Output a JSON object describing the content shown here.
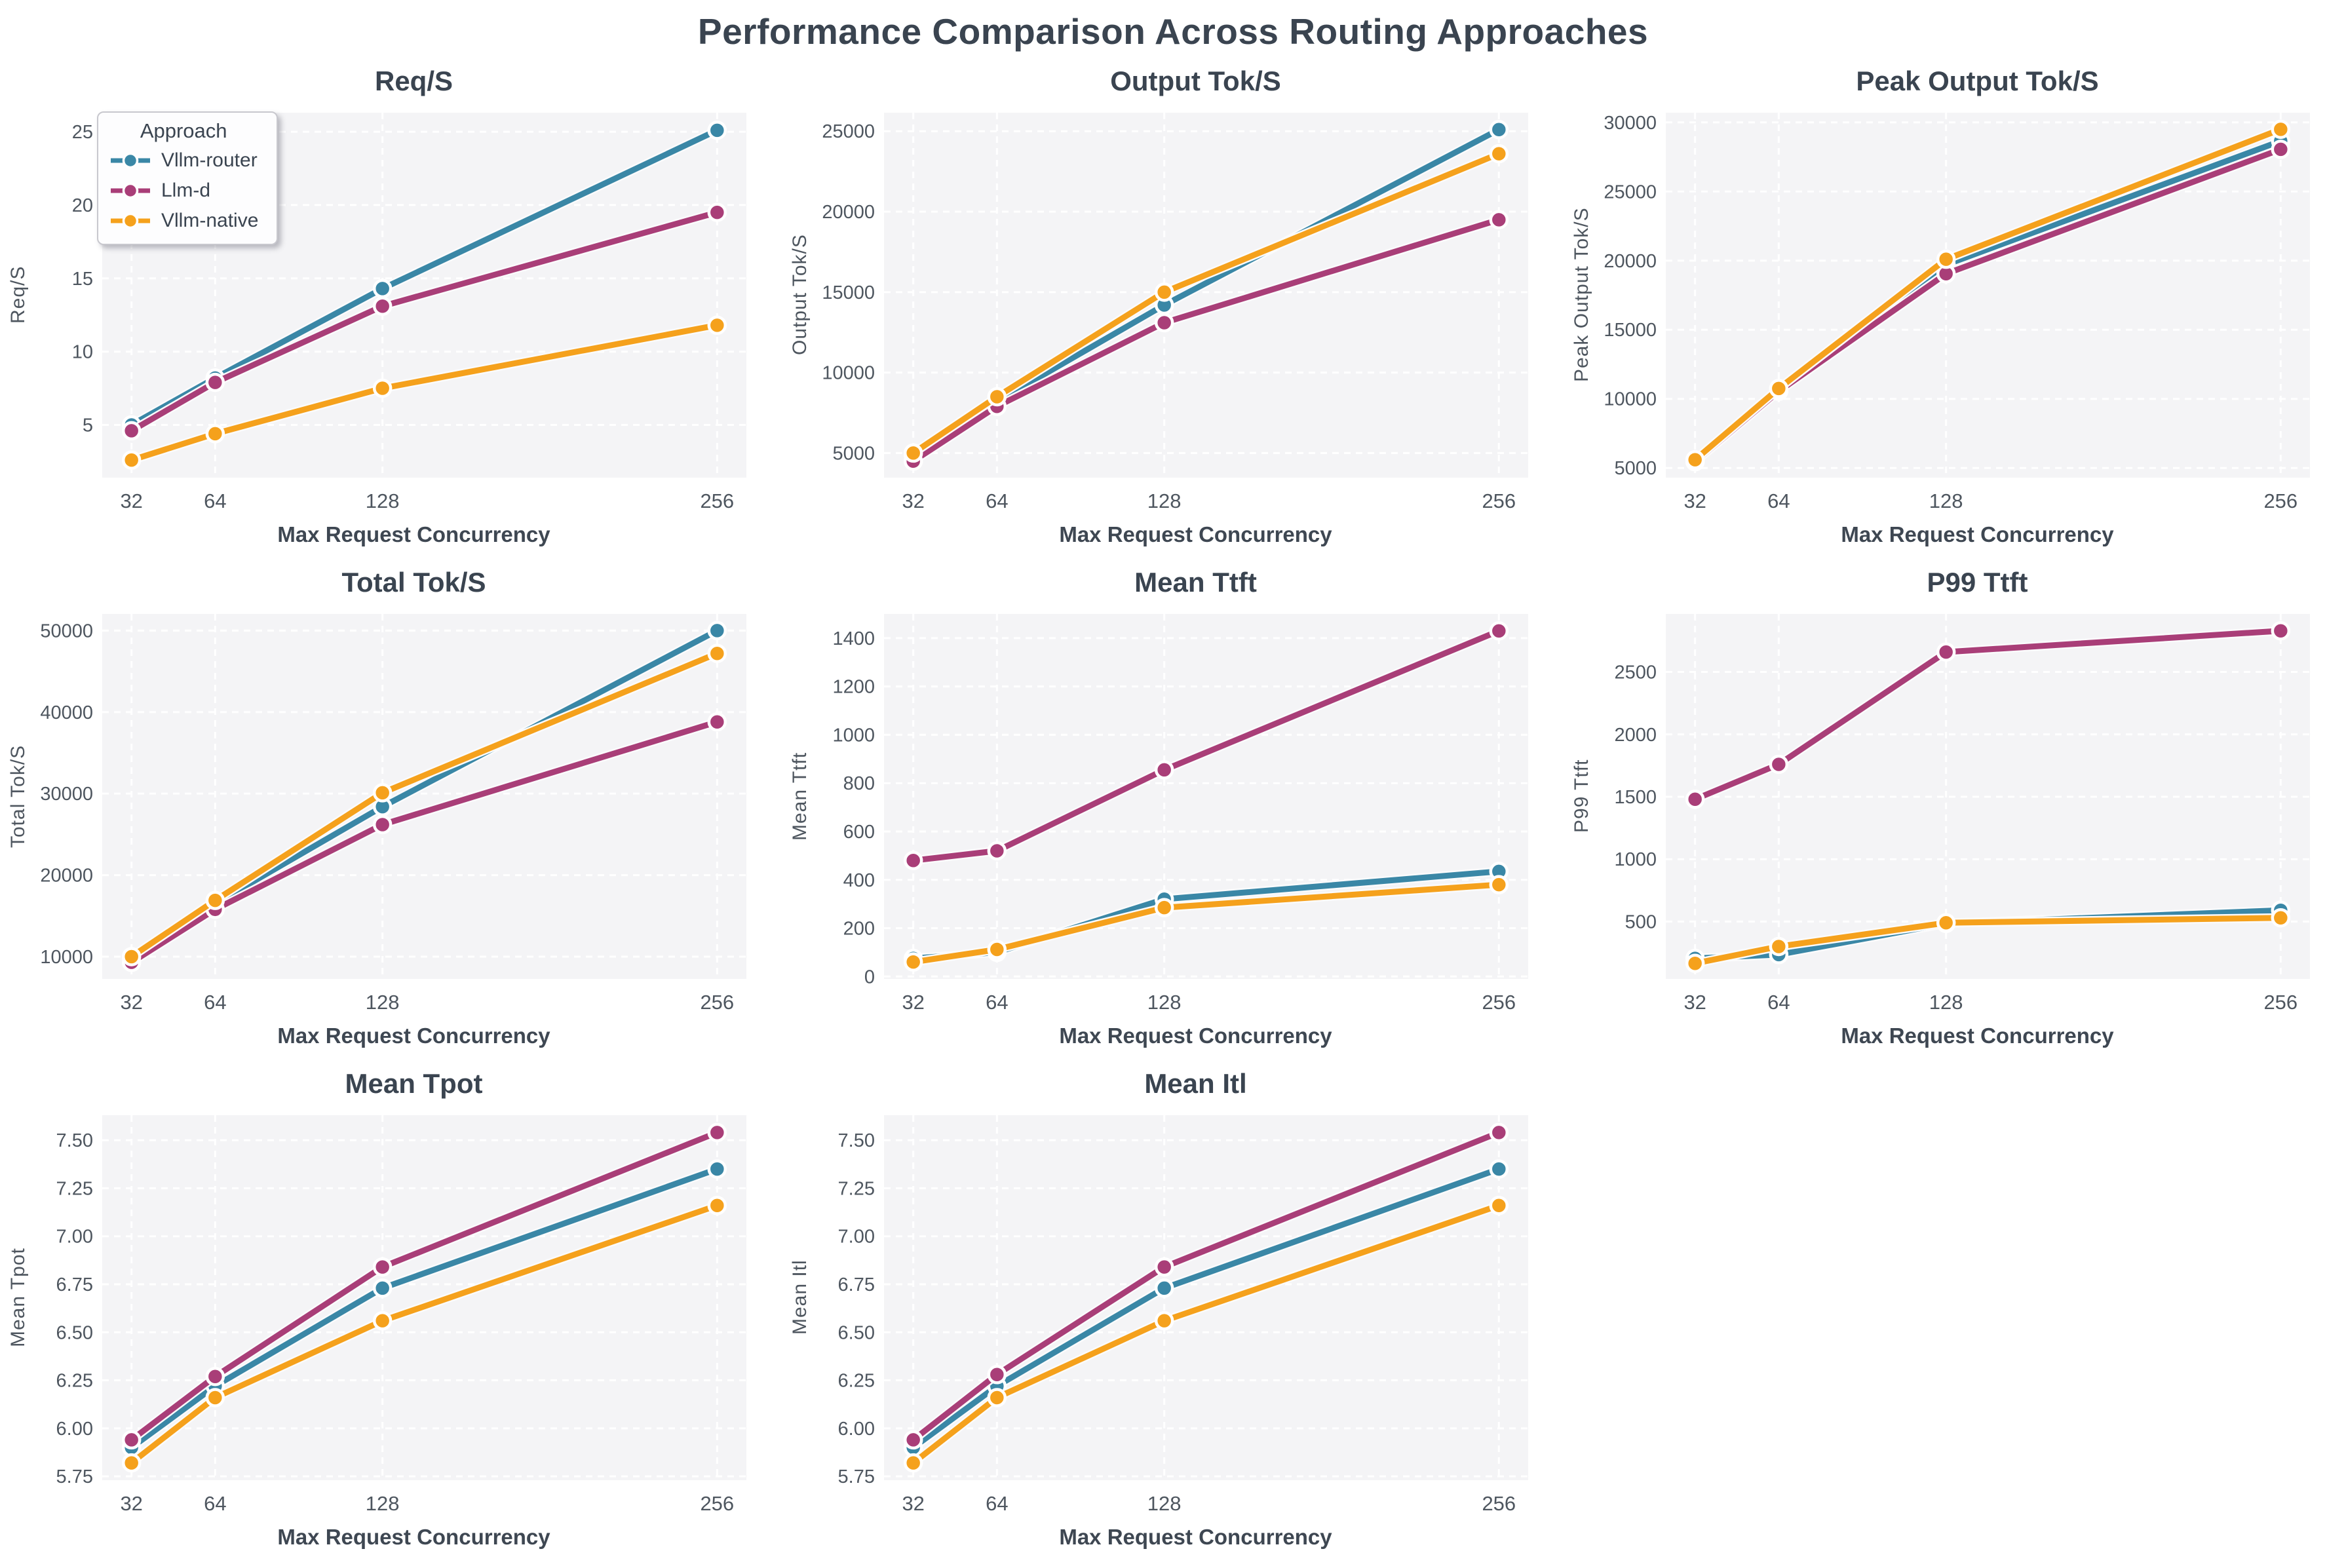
{
  "page": {
    "title": "Performance Comparison Across Routing Approaches"
  },
  "xlabel": "Max Request Concurrency",
  "legend": {
    "title": "Approach",
    "entries": [
      {
        "label": "Vllm-router",
        "color": "#3a87a6"
      },
      {
        "label": "Llm-d",
        "color": "#a93e78"
      },
      {
        "label": "Vllm-native",
        "color": "#f5a11c"
      }
    ]
  },
  "style": {
    "plot_bg": "#f4f4f6",
    "grid_color": "#ffffff",
    "tick_color": "#4e565f",
    "title_color": "#3a4450",
    "accent_blue": "#3a87a6",
    "accent_magenta": "#a93e78",
    "accent_orange": "#f5a11c"
  },
  "chart_data": [
    {
      "type": "line",
      "title": "Req/S",
      "ylabel": "Req/S",
      "x": [
        32,
        64,
        128,
        256
      ],
      "xtick_labels": [
        "32",
        "64",
        "128",
        "256"
      ],
      "ytick_labels": [
        "5",
        "10",
        "15",
        "20",
        "25"
      ],
      "ylim": [
        1.4,
        26.3
      ],
      "grid": true,
      "legend_visible": true,
      "series": [
        {
          "name": "Vllm-router",
          "color": "#3a87a6",
          "values": [
            5.0,
            8.2,
            14.3,
            25.1
          ]
        },
        {
          "name": "Llm-d",
          "color": "#a93e78",
          "values": [
            4.6,
            7.9,
            13.1,
            19.5
          ]
        },
        {
          "name": "Vllm-native",
          "color": "#f5a11c",
          "values": [
            2.6,
            4.4,
            7.5,
            11.8
          ]
        }
      ]
    },
    {
      "type": "line",
      "title": "Output Tok/S",
      "ylabel": "Output Tok/S",
      "x": [
        32,
        64,
        128,
        256
      ],
      "xtick_labels": [
        "32",
        "64",
        "128",
        "256"
      ],
      "ytick_labels": [
        "5000",
        "10000",
        "15000",
        "20000",
        "25000"
      ],
      "ylim": [
        3470,
        26150
      ],
      "grid": true,
      "legend_visible": false,
      "series": [
        {
          "name": "Vllm-router",
          "color": "#3a87a6",
          "values": [
            4900,
            8200,
            14200,
            25100
          ]
        },
        {
          "name": "Llm-d",
          "color": "#a93e78",
          "values": [
            4500,
            7900,
            13100,
            19500
          ]
        },
        {
          "name": "Vllm-native",
          "color": "#f5a11c",
          "values": [
            5000,
            8500,
            15000,
            23600
          ]
        }
      ]
    },
    {
      "type": "line",
      "title": "Peak Output Tok/S",
      "ylabel": "Peak Output Tok/S",
      "x": [
        32,
        64,
        128,
        256
      ],
      "xtick_labels": [
        "32",
        "64",
        "128",
        "256"
      ],
      "ytick_labels": [
        "5000",
        "10000",
        "15000",
        "20000",
        "25000",
        "30000"
      ],
      "ylim": [
        4300,
        30700
      ],
      "grid": true,
      "legend_visible": false,
      "series": [
        {
          "name": "Vllm-router",
          "color": "#3a87a6",
          "values": [
            5500,
            10600,
            19700,
            28650
          ]
        },
        {
          "name": "Llm-d",
          "color": "#a93e78",
          "values": [
            5450,
            10550,
            19050,
            28050
          ]
        },
        {
          "name": "Vllm-native",
          "color": "#f5a11c",
          "values": [
            5600,
            10750,
            20100,
            29500
          ]
        }
      ]
    },
    {
      "type": "line",
      "title": "Total Tok/S",
      "ylabel": "Total Tok/S",
      "x": [
        32,
        64,
        128,
        256
      ],
      "xtick_labels": [
        "32",
        "64",
        "128",
        "256"
      ],
      "ytick_labels": [
        "10000",
        "20000",
        "30000",
        "40000",
        "50000"
      ],
      "ylim": [
        7265,
        52040
      ],
      "grid": true,
      "legend_visible": false,
      "series": [
        {
          "name": "Vllm-router",
          "color": "#3a87a6",
          "values": [
            9900,
            16500,
            28400,
            50000
          ]
        },
        {
          "name": "Llm-d",
          "color": "#a93e78",
          "values": [
            9300,
            15800,
            26200,
            38800
          ]
        },
        {
          "name": "Vllm-native",
          "color": "#f5a11c",
          "values": [
            10000,
            16900,
            30100,
            47200
          ]
        }
      ]
    },
    {
      "type": "line",
      "title": "Mean Ttft",
      "ylabel": "Mean Ttft",
      "x": [
        32,
        64,
        128,
        256
      ],
      "xtick_labels": [
        "32",
        "64",
        "128",
        "256"
      ],
      "ytick_labels": [
        "0",
        "200",
        "400",
        "600",
        "800",
        "1000",
        "1200",
        "1400"
      ],
      "ylim": [
        -10,
        1500
      ],
      "grid": true,
      "legend_visible": false,
      "series": [
        {
          "name": "Vllm-router",
          "color": "#3a87a6",
          "values": [
            75,
            100,
            320,
            435
          ]
        },
        {
          "name": "Llm-d",
          "color": "#a93e78",
          "values": [
            480,
            520,
            855,
            1430
          ]
        },
        {
          "name": "Vllm-native",
          "color": "#f5a11c",
          "values": [
            60,
            112,
            285,
            380
          ]
        }
      ]
    },
    {
      "type": "line",
      "title": "P99 Ttft",
      "ylabel": "P99 Ttft",
      "x": [
        32,
        64,
        128,
        256
      ],
      "xtick_labels": [
        "32",
        "64",
        "128",
        "256"
      ],
      "ytick_labels": [
        "500",
        "1000",
        "1500",
        "2000",
        "2500"
      ],
      "ylim": [
        40,
        2965
      ],
      "grid": true,
      "legend_visible": false,
      "series": [
        {
          "name": "Vllm-router",
          "color": "#3a87a6",
          "values": [
            205,
            235,
            485,
            590
          ]
        },
        {
          "name": "Llm-d",
          "color": "#a93e78",
          "values": [
            1480,
            1760,
            2660,
            2830
          ]
        },
        {
          "name": "Vllm-native",
          "color": "#f5a11c",
          "values": [
            165,
            300,
            490,
            530
          ]
        }
      ]
    },
    {
      "type": "line",
      "title": "Mean Tpot",
      "ylabel": "Mean Tpot",
      "x": [
        32,
        64,
        128,
        256
      ],
      "xtick_labels": [
        "32",
        "64",
        "128",
        "256"
      ],
      "ytick_labels": [
        "5.75",
        "6.00",
        "6.25",
        "6.50",
        "6.75",
        "7.00",
        "7.25",
        "7.50"
      ],
      "ylim": [
        5.73,
        7.63
      ],
      "grid": true,
      "legend_visible": false,
      "series": [
        {
          "name": "Vllm-router",
          "color": "#3a87a6",
          "values": [
            5.9,
            6.22,
            6.73,
            7.35
          ]
        },
        {
          "name": "Llm-d",
          "color": "#a93e78",
          "values": [
            5.94,
            6.27,
            6.84,
            7.54
          ]
        },
        {
          "name": "Vllm-native",
          "color": "#f5a11c",
          "values": [
            5.82,
            6.16,
            6.56,
            7.16
          ]
        }
      ]
    },
    {
      "type": "line",
      "title": "Mean Itl",
      "ylabel": "Mean Itl",
      "x": [
        32,
        64,
        128,
        256
      ],
      "xtick_labels": [
        "32",
        "64",
        "128",
        "256"
      ],
      "ytick_labels": [
        "5.75",
        "6.00",
        "6.25",
        "6.50",
        "6.75",
        "7.00",
        "7.25",
        "7.50"
      ],
      "ylim": [
        5.73,
        7.63
      ],
      "grid": true,
      "legend_visible": false,
      "series": [
        {
          "name": "Vllm-router",
          "color": "#3a87a6",
          "values": [
            5.9,
            6.22,
            6.73,
            7.35
          ]
        },
        {
          "name": "Llm-d",
          "color": "#a93e78",
          "values": [
            5.94,
            6.28,
            6.84,
            7.54
          ]
        },
        {
          "name": "Vllm-native",
          "color": "#f5a11c",
          "values": [
            5.82,
            6.16,
            6.56,
            7.16
          ]
        }
      ]
    }
  ]
}
